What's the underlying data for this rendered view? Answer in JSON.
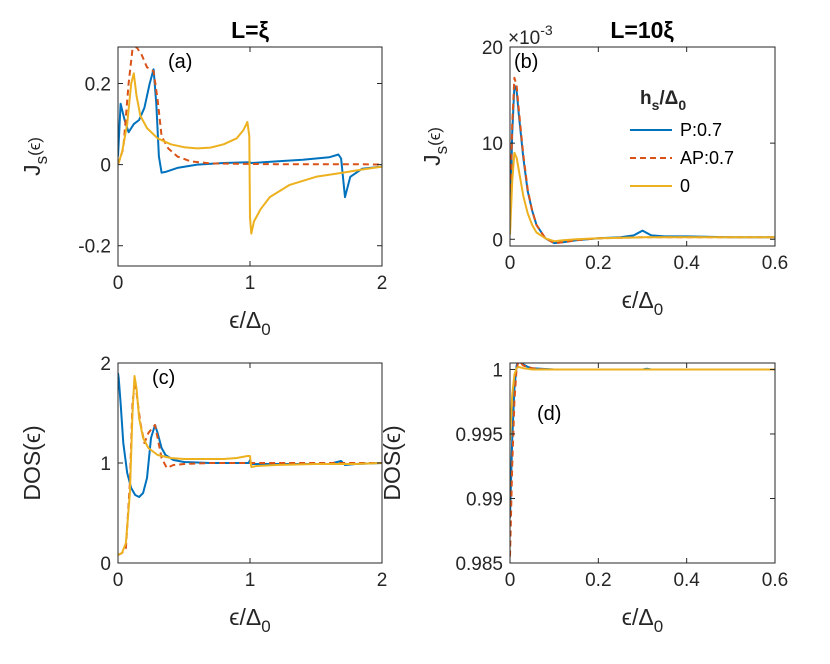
{
  "figure": {
    "panel_a_title": "L=ξ",
    "panel_b_title": "L=10ξ",
    "multiplier_text": "×10",
    "multiplier_exp": "-3",
    "legend_title_main": "h",
    "legend_title_sub": "s",
    "legend_title_rest": "/Δ",
    "legend_title_sub0": "0"
  },
  "colors": {
    "P": "#0072BD",
    "AP": "#D95319",
    "zero": "#EDB120"
  },
  "chart_data": [
    {
      "id": "a",
      "type": "line",
      "panel_label": "(a)",
      "ylabel_main": "J",
      "ylabel_sub": "s",
      "ylabel_rest": "(ϵ)",
      "xlabel_main": "ϵ/Δ",
      "xlabel_sub": "0",
      "xlim": [
        0,
        2
      ],
      "ylim": [
        -0.25,
        0.29
      ],
      "xticks": [
        0,
        1,
        2
      ],
      "xticklabels": [
        "0",
        "1",
        "2"
      ],
      "yticks": [
        -0.2,
        0,
        0.2
      ],
      "yticklabels": [
        "-0.2",
        "0",
        "0.2"
      ],
      "series": [
        {
          "name": "P:0.7",
          "key": "P",
          "dash": "solid",
          "x": [
            0,
            0.02,
            0.05,
            0.08,
            0.12,
            0.16,
            0.2,
            0.24,
            0.27,
            0.29,
            0.31,
            0.33,
            0.36,
            0.45,
            0.6,
            0.8,
            0.99,
            1.0,
            1.01,
            1.2,
            1.4,
            1.6,
            1.67,
            1.69,
            1.72,
            1.76,
            1.85,
            2.0
          ],
          "y": [
            0.02,
            0.15,
            0.11,
            0.08,
            0.1,
            0.11,
            0.14,
            0.2,
            0.235,
            0.15,
            0.02,
            -0.02,
            -0.018,
            -0.008,
            0,
            0.004,
            0.006,
            0.006,
            0.004,
            0.008,
            0.012,
            0.018,
            0.025,
            0.015,
            -0.08,
            -0.03,
            -0.01,
            -0.005
          ]
        },
        {
          "name": "AP:0.7",
          "key": "AP",
          "dash": "dashed",
          "x": [
            0,
            0.04,
            0.08,
            0.11,
            0.14,
            0.18,
            0.22,
            0.27,
            0.3,
            0.33,
            0.38,
            0.45,
            0.55,
            0.7,
            0.9,
            1.2,
            1.5,
            1.8,
            2.0
          ],
          "y": [
            0.0,
            0.04,
            0.2,
            0.285,
            0.29,
            0.27,
            0.24,
            0.23,
            0.16,
            0.07,
            0.04,
            0.02,
            0.008,
            0.003,
            0.002,
            0.001,
            0.001,
            0.001,
            0.0
          ]
        },
        {
          "name": "0",
          "key": "zero",
          "dash": "solid",
          "x": [
            0,
            0.03,
            0.07,
            0.1,
            0.12,
            0.14,
            0.17,
            0.22,
            0.3,
            0.4,
            0.5,
            0.6,
            0.7,
            0.8,
            0.9,
            0.95,
            0.98,
            0.995,
            1.0,
            1.01,
            1.03,
            1.08,
            1.15,
            1.3,
            1.5,
            1.7,
            1.85,
            2.0
          ],
          "y": [
            0,
            0.03,
            0.1,
            0.2,
            0.225,
            0.17,
            0.12,
            0.09,
            0.065,
            0.05,
            0.043,
            0.04,
            0.042,
            0.05,
            0.065,
            0.085,
            0.105,
            0.07,
            -0.13,
            -0.17,
            -0.14,
            -0.11,
            -0.08,
            -0.05,
            -0.03,
            -0.02,
            -0.012,
            -0.005
          ]
        }
      ]
    },
    {
      "id": "b",
      "type": "line",
      "panel_label": "(b)",
      "ylabel_main": "J",
      "ylabel_sub": "s",
      "ylabel_rest": "(ϵ)",
      "xlabel_main": "ϵ/Δ",
      "xlabel_sub": "0",
      "xlim": [
        0,
        0.6
      ],
      "ylim": [
        -0.0007,
        0.02
      ],
      "xticks": [
        0,
        0.2,
        0.4,
        0.6
      ],
      "xticklabels": [
        "0",
        "0.2",
        "0.4",
        "0.6"
      ],
      "yticks": [
        0,
        0.01,
        0.02
      ],
      "yticklabels": [
        "0",
        "10",
        "20"
      ],
      "legend": {
        "entries": [
          "P:0.7",
          "AP:0.7",
          "0"
        ]
      },
      "series": [
        {
          "name": "P:0.7",
          "key": "P",
          "dash": "solid",
          "x": [
            0,
            0.005,
            0.01,
            0.015,
            0.02,
            0.03,
            0.04,
            0.05,
            0.06,
            0.08,
            0.1,
            0.12,
            0.15,
            0.2,
            0.25,
            0.28,
            0.3,
            0.32,
            0.35,
            0.4,
            0.5,
            0.6
          ],
          "y": [
            0.001,
            0.011,
            0.016,
            0.0155,
            0.013,
            0.0085,
            0.005,
            0.003,
            0.0015,
            0.0001,
            -0.0004,
            -0.0003,
            -0.0001,
            0.0001,
            0.0002,
            0.0004,
            0.0009,
            0.0004,
            0.0003,
            0.0003,
            0.0002,
            0.0002
          ]
        },
        {
          "name": "AP:0.7",
          "key": "AP",
          "dash": "dashed",
          "x": [
            0,
            0.005,
            0.01,
            0.015,
            0.02,
            0.03,
            0.04,
            0.05,
            0.06,
            0.08,
            0.1,
            0.12,
            0.15,
            0.2,
            0.3,
            0.4,
            0.5,
            0.6
          ],
          "y": [
            0.001,
            0.012,
            0.0168,
            0.016,
            0.0135,
            0.0088,
            0.0052,
            0.003,
            0.0015,
            0.0001,
            -0.0004,
            -0.0003,
            -0.0001,
            0.0001,
            0.0002,
            0.0002,
            0.0002,
            0.0002
          ]
        },
        {
          "name": "0",
          "key": "zero",
          "dash": "solid",
          "x": [
            0,
            0.005,
            0.01,
            0.015,
            0.02,
            0.03,
            0.04,
            0.05,
            0.06,
            0.08,
            0.1,
            0.12,
            0.15,
            0.2,
            0.3,
            0.4,
            0.5,
            0.6
          ],
          "y": [
            0.0005,
            0.006,
            0.009,
            0.0085,
            0.0072,
            0.0045,
            0.0027,
            0.0015,
            0.0007,
            0.0001,
            -0.0002,
            -0.0001,
            0,
            0.0001,
            0.0002,
            0.0002,
            0.0002,
            0.0002
          ]
        }
      ]
    },
    {
      "id": "c",
      "type": "line",
      "panel_label": "(c)",
      "ylabel_main": "DOS(ϵ)",
      "ylabel_sub": "",
      "ylabel_rest": "",
      "xlabel_main": "ϵ/Δ",
      "xlabel_sub": "0",
      "xlim": [
        0,
        2
      ],
      "ylim": [
        0,
        2
      ],
      "xticks": [
        0,
        1,
        2
      ],
      "xticklabels": [
        "0",
        "1",
        "2"
      ],
      "yticks": [
        0,
        1,
        2
      ],
      "yticklabels": [
        "0",
        "1",
        "2"
      ],
      "series": [
        {
          "name": "P:0.7",
          "key": "P",
          "dash": "solid",
          "x": [
            0,
            0.005,
            0.02,
            0.04,
            0.07,
            0.1,
            0.13,
            0.16,
            0.19,
            0.22,
            0.25,
            0.28,
            0.3,
            0.33,
            0.36,
            0.42,
            0.5,
            0.7,
            0.99,
            1.0,
            1.01,
            1.05,
            1.3,
            1.6,
            1.69,
            1.72,
            1.8,
            2.0
          ],
          "y": [
            1.9,
            1.85,
            1.6,
            1.2,
            0.9,
            0.75,
            0.68,
            0.66,
            0.7,
            0.85,
            1.25,
            1.38,
            1.3,
            1.15,
            1.08,
            1.03,
            1.01,
            1.0,
            1.0,
            1.03,
            0.99,
            0.99,
            0.99,
            0.99,
            1.02,
            0.98,
            0.99,
            1.0
          ]
        },
        {
          "name": "AP:0.7",
          "key": "AP",
          "dash": "dashed",
          "x": [
            0,
            0.03,
            0.06,
            0.09,
            0.11,
            0.13,
            0.15,
            0.17,
            0.2,
            0.23,
            0.26,
            0.28,
            0.3,
            0.33,
            0.37,
            0.42,
            0.5,
            0.7,
            1.0,
            1.3,
            1.6,
            1.8,
            2.0
          ],
          "y": [
            0.08,
            0.1,
            0.15,
            0.8,
            1.6,
            1.82,
            1.6,
            1.4,
            1.2,
            1.3,
            1.35,
            1.38,
            1.25,
            1.05,
            0.95,
            0.98,
            0.99,
            1.0,
            1.0,
            1.0,
            1.0,
            1.0,
            1.0
          ]
        },
        {
          "name": "0",
          "key": "zero",
          "dash": "solid",
          "x": [
            0,
            0.03,
            0.06,
            0.09,
            0.11,
            0.125,
            0.14,
            0.16,
            0.19,
            0.23,
            0.3,
            0.4,
            0.5,
            0.6,
            0.7,
            0.8,
            0.9,
            0.98,
            1.0,
            1.01,
            1.05,
            1.2,
            1.5,
            1.8,
            2.0
          ],
          "y": [
            0.08,
            0.1,
            0.2,
            0.7,
            1.5,
            1.87,
            1.75,
            1.45,
            1.25,
            1.15,
            1.08,
            1.05,
            1.04,
            1.04,
            1.04,
            1.04,
            1.05,
            1.07,
            1.07,
            0.96,
            0.97,
            0.98,
            0.99,
            0.99,
            1.0
          ]
        }
      ]
    },
    {
      "id": "d",
      "type": "line",
      "panel_label": "(d)",
      "ylabel_main": "DOS(ϵ)",
      "ylabel_sub": "",
      "ylabel_rest": "",
      "xlabel_main": "ϵ/Δ",
      "xlabel_sub": "0",
      "xlim": [
        0,
        0.6
      ],
      "ylim": [
        0.985,
        1.0005
      ],
      "xticks": [
        0,
        0.2,
        0.4,
        0.6
      ],
      "xticklabels": [
        "0",
        "0.2",
        "0.4",
        "0.6"
      ],
      "yticks": [
        0.985,
        0.99,
        0.995,
        1
      ],
      "yticklabels": [
        "0.985",
        "0.99",
        "0.995",
        "1"
      ],
      "series": [
        {
          "name": "P:0.7",
          "key": "P",
          "dash": "solid",
          "x": [
            0,
            0.005,
            0.01,
            0.015,
            0.02,
            0.025,
            0.03,
            0.04,
            0.05,
            0.07,
            0.1,
            0.15,
            0.2,
            0.3,
            0.31,
            0.32,
            0.4,
            0.5,
            0.6
          ],
          "y": [
            0.9885,
            0.9945,
            0.9985,
            1.0003,
            1.0008,
            1.0006,
            1.0004,
            1.0002,
            1.0001,
            1.00005,
            1.0,
            1.0,
            1.0,
            1.0,
            1.00005,
            1.0,
            1.0,
            1.0,
            1.0
          ]
        },
        {
          "name": "AP:0.7",
          "key": "AP",
          "dash": "dashed",
          "x": [
            0,
            0.005,
            0.01,
            0.015,
            0.02,
            0.025,
            0.03,
            0.04,
            0.05,
            0.07,
            0.1,
            0.2,
            0.3,
            0.4,
            0.5,
            0.6
          ],
          "y": [
            0.9855,
            0.9925,
            0.9975,
            1.0001,
            1.0007,
            1.0005,
            1.0003,
            1.0002,
            1.0001,
            1.00003,
            1.0,
            1.0,
            1.0,
            1.0,
            1.0,
            1.0
          ]
        },
        {
          "name": "0",
          "key": "zero",
          "dash": "solid",
          "x": [
            0,
            0.005,
            0.01,
            0.015,
            0.02,
            0.03,
            0.04,
            0.05,
            0.07,
            0.1,
            0.2,
            0.3,
            0.4,
            0.5,
            0.6
          ],
          "y": [
            0.9945,
            0.998,
            0.9996,
            1.0001,
            1.0002,
            1.0001,
            1.00005,
            1.0,
            1.0,
            1.0,
            1.0,
            1.0,
            1.0,
            1.0,
            1.0
          ]
        }
      ]
    }
  ]
}
